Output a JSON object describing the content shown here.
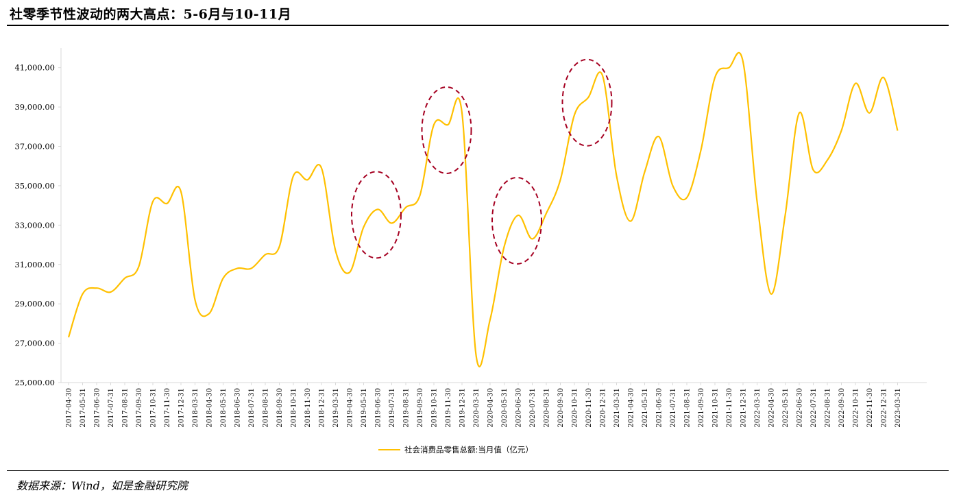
{
  "header": {
    "title": "社零季节性波动的两大高点：5-6月与10-11月"
  },
  "footer": {
    "source": "数据来源：Wind，如是金融研究院"
  },
  "colors": {
    "line": "#FFC000",
    "highlight": "#A50021",
    "axis": "#D9D9D9"
  },
  "chart_data": {
    "type": "line",
    "title": "社零季节性波动的两大高点：5-6月与10-11月",
    "xlabel": "",
    "ylabel": "",
    "ylim": [
      25000,
      42000
    ],
    "yticks": [
      25000,
      27000,
      29000,
      31000,
      33000,
      35000,
      37000,
      39000,
      41000
    ],
    "ytick_labels": [
      "25,000.00",
      "27,000.00",
      "29,000.00",
      "31,000.00",
      "33,000.00",
      "35,000.00",
      "37,000.00",
      "39,000.00",
      "41,000.00"
    ],
    "grid": false,
    "legend": "bottom",
    "categories": [
      "2017-04-30",
      "2017-05-31",
      "2017-06-30",
      "2017-07-31",
      "2017-08-31",
      "2017-09-30",
      "2017-10-31",
      "2017-11-30",
      "2017-12-31",
      "2018-03-31",
      "2018-04-30",
      "2018-05-31",
      "2018-06-30",
      "2018-07-31",
      "2018-08-31",
      "2018-09-30",
      "2018-10-31",
      "2018-11-30",
      "2018-12-31",
      "2019-03-31",
      "2019-04-30",
      "2019-05-31",
      "2019-06-30",
      "2019-07-31",
      "2019-08-31",
      "2019-09-30",
      "2019-10-31",
      "2019-11-30",
      "2019-12-31",
      "2020-03-31",
      "2020-04-30",
      "2020-05-31",
      "2020-06-30",
      "2020-07-31",
      "2020-08-31",
      "2020-09-30",
      "2020-10-31",
      "2020-11-30",
      "2020-12-31",
      "2021-03-31",
      "2021-04-30",
      "2021-05-31",
      "2021-06-30",
      "2021-07-31",
      "2021-08-31",
      "2021-09-30",
      "2021-10-31",
      "2021-11-30",
      "2021-12-31",
      "2022-03-31",
      "2022-04-30",
      "2022-05-31",
      "2022-06-30",
      "2022-07-31",
      "2022-08-31",
      "2022-09-30",
      "2022-10-31",
      "2022-11-30",
      "2022-12-31",
      "2023-03-31"
    ],
    "series": [
      {
        "name": "社会消费品零售总额:当月值（亿元）",
        "values": [
          27300,
          29500,
          29800,
          29600,
          30300,
          30900,
          34200,
          34100,
          34700,
          29200,
          28500,
          30300,
          30800,
          30800,
          31500,
          31900,
          35500,
          35300,
          35900,
          31700,
          30600,
          32900,
          33800,
          33100,
          33900,
          34500,
          38100,
          38100,
          38700,
          26400,
          28200,
          31900,
          33500,
          32300,
          33600,
          35300,
          38600,
          39500,
          40600,
          35500,
          33200,
          35700,
          37500,
          35000,
          34400,
          36800,
          40500,
          41000,
          41300,
          34200,
          29500,
          33500,
          38700,
          35800,
          36300,
          37800,
          40200,
          38700,
          40500,
          37800
        ]
      }
    ],
    "annotations": [
      "2019-06-30",
      "2019-11-30",
      "2020-06-30",
      "2020-11-30"
    ]
  }
}
